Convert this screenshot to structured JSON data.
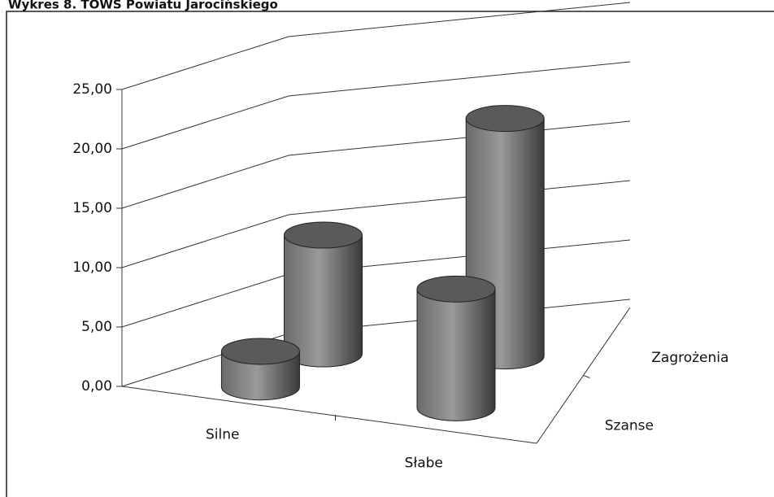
{
  "chart_data": {
    "type": "bar3d_cylinder",
    "title": "Wykres 8. TOWS Powiatu Jarocińskiego",
    "categories": [
      "Silne",
      "Słabe"
    ],
    "series": [
      {
        "name": "Szanse",
        "color": "#5a5a5a",
        "values": [
          3,
          10
        ]
      },
      {
        "name": "Zagrożenia",
        "color": "#5a5a5a",
        "values": [
          10,
          20
        ]
      }
    ],
    "ylim": [
      0,
      25
    ],
    "yticks": [
      {
        "value": 0,
        "label": "0,00"
      },
      {
        "value": 5,
        "label": "5,00"
      },
      {
        "value": 10,
        "label": "10,00"
      },
      {
        "value": 15,
        "label": "15,00"
      },
      {
        "value": 20,
        "label": "20,00"
      },
      {
        "value": 25,
        "label": "25,00"
      }
    ],
    "grid": true
  }
}
